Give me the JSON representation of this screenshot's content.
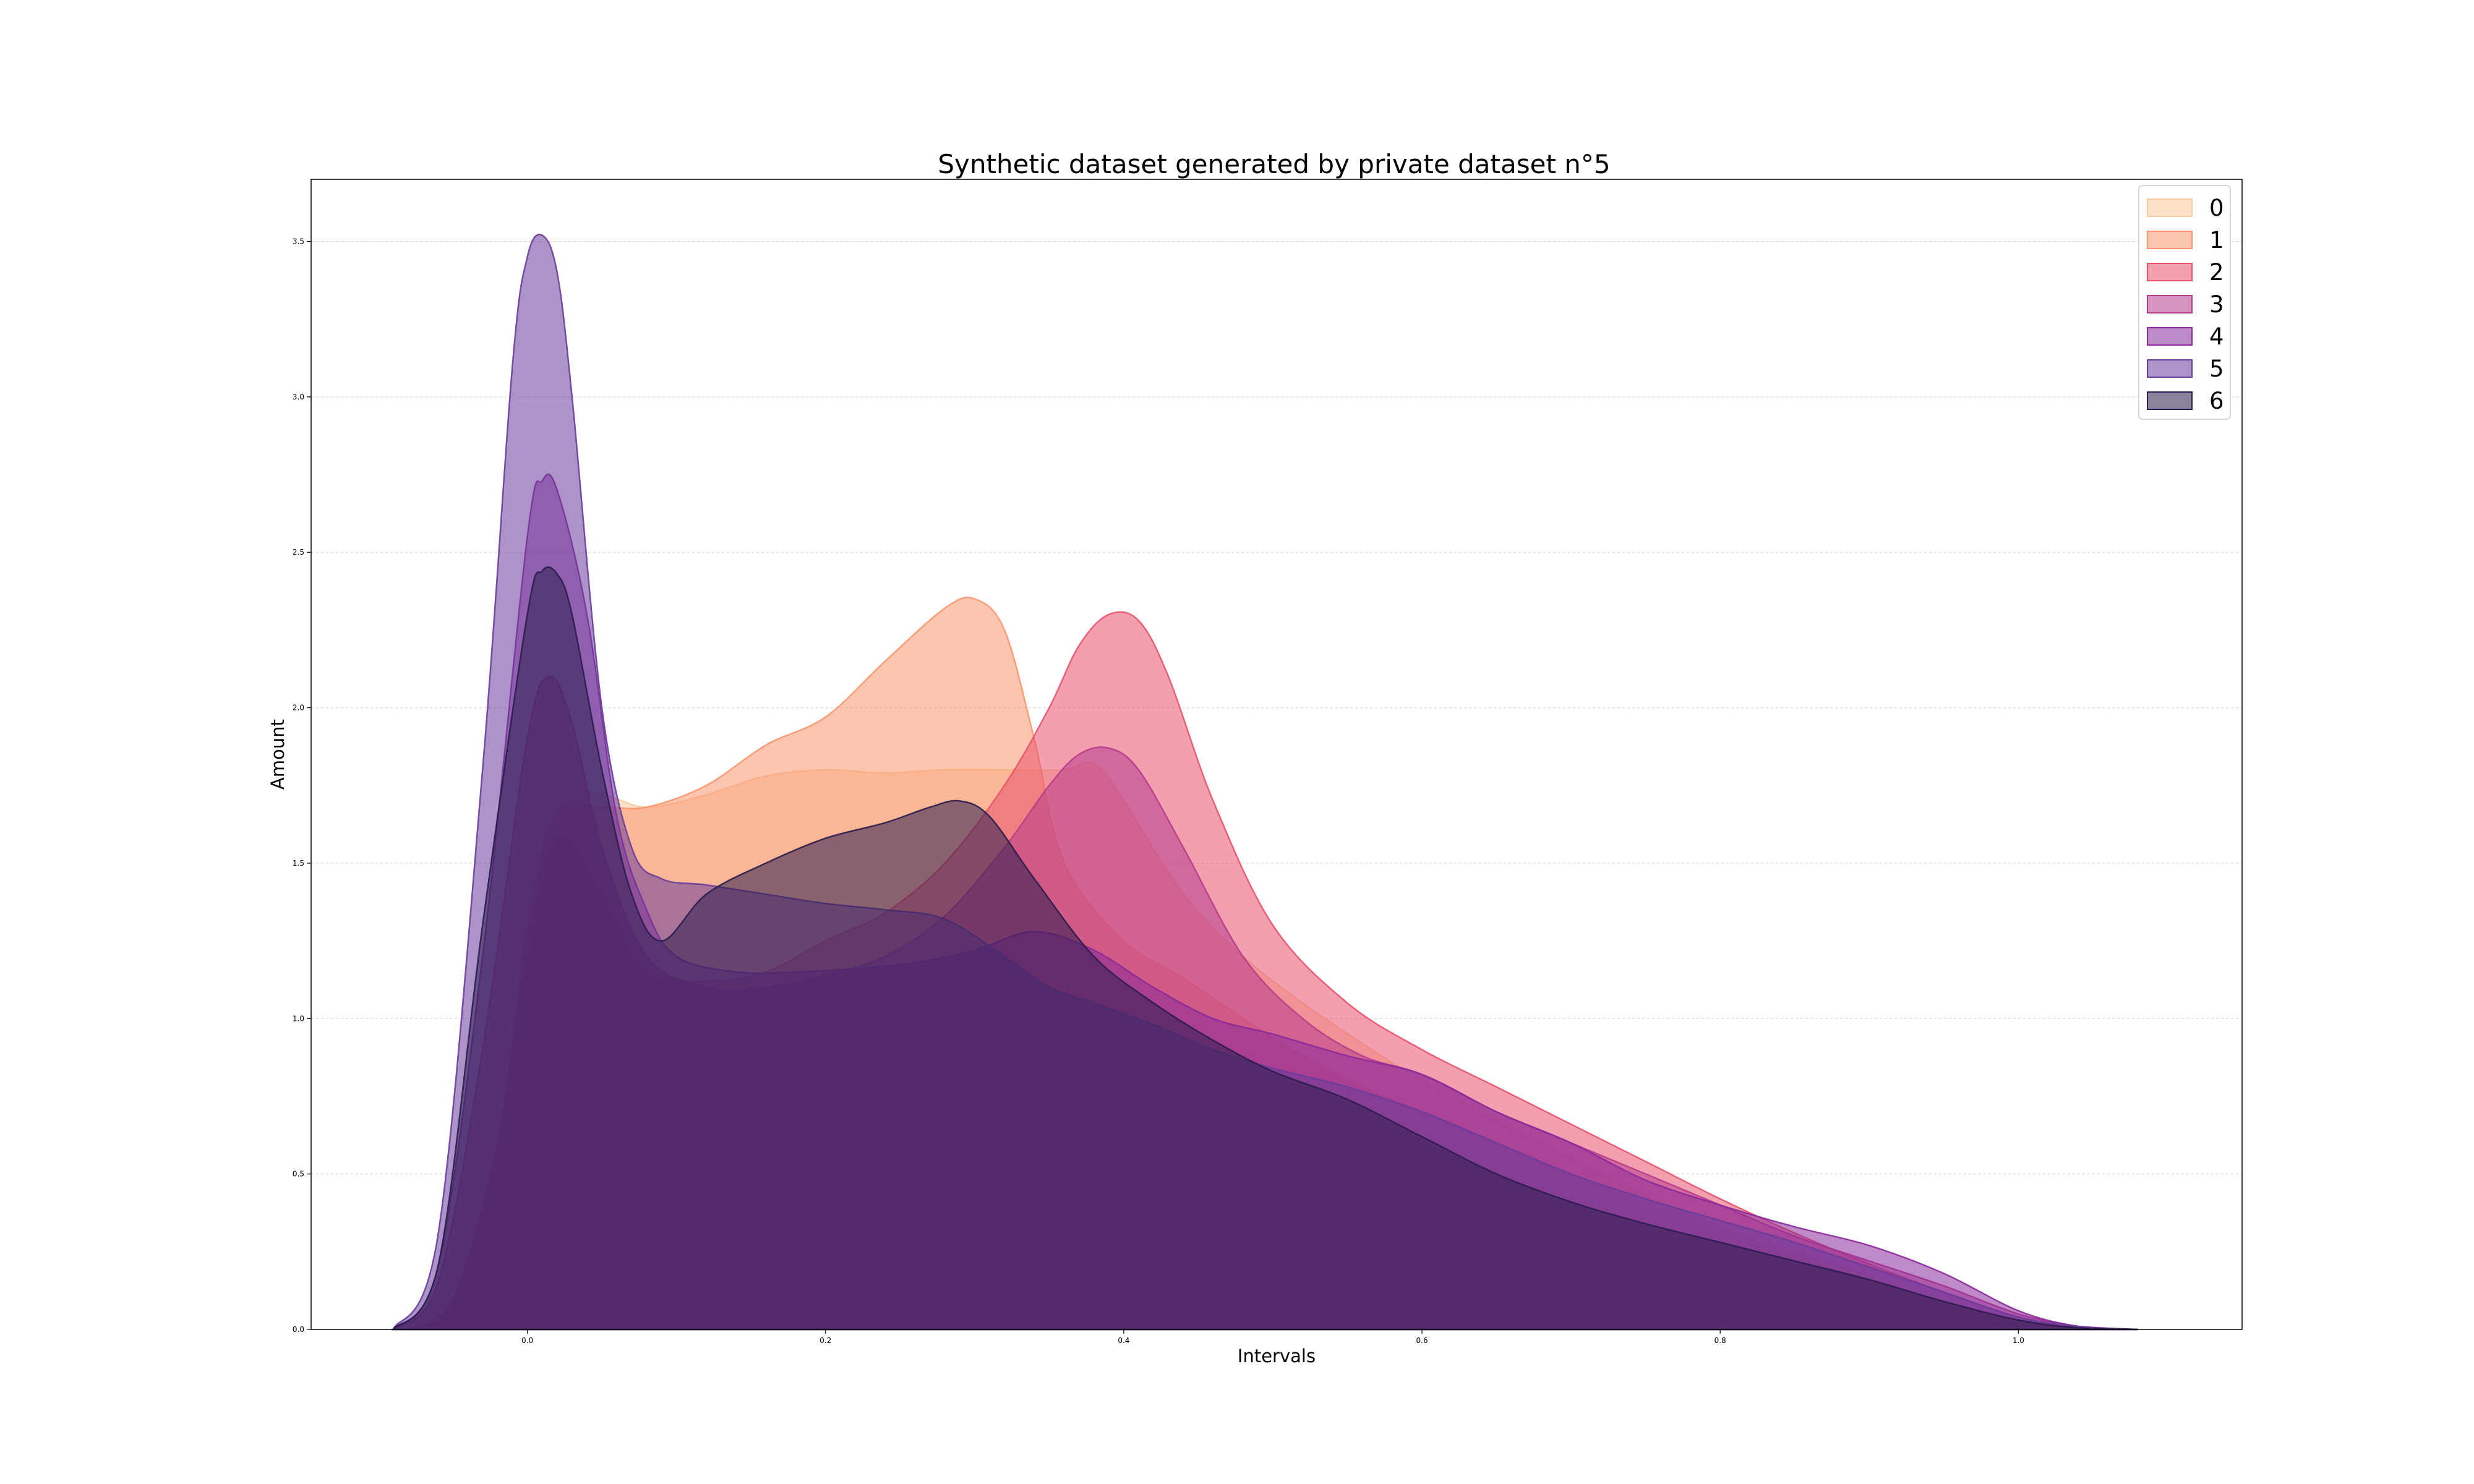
{
  "chart_data": {
    "type": "area",
    "title": "Synthetic dataset generated by private dataset n°5",
    "xlabel": "Intervals",
    "ylabel": "Amount",
    "xlim": [
      -0.145,
      1.15
    ],
    "ylim": [
      0,
      3.7
    ],
    "xticks": [
      0.0,
      0.2,
      0.4,
      0.6,
      0.8,
      1.0
    ],
    "xtick_labels": [
      "0.0",
      "0.2",
      "0.4",
      "0.6",
      "0.8",
      "1.0"
    ],
    "yticks": [
      0.0,
      0.5,
      1.0,
      1.5,
      2.0,
      2.5,
      3.0,
      3.5
    ],
    "ytick_labels": [
      "0.0",
      "0.5",
      "1.0",
      "1.5",
      "2.0",
      "2.5",
      "3.0",
      "3.5"
    ],
    "grid": "horizontal",
    "legend_position": "top-right",
    "series": [
      {
        "name": "0",
        "color": "#fcc99a",
        "x": [
          -0.08,
          -0.05,
          -0.02,
          0.0,
          0.02,
          0.05,
          0.08,
          0.12,
          0.16,
          0.2,
          0.24,
          0.28,
          0.32,
          0.36,
          0.38,
          0.4,
          0.44,
          0.48,
          0.52,
          0.56,
          0.6,
          0.65,
          0.7,
          0.75,
          0.8,
          0.85,
          0.9,
          0.95,
          1.0,
          1.04,
          1.08
        ],
        "y": [
          0.0,
          0.1,
          0.6,
          1.3,
          1.7,
          1.72,
          1.68,
          1.72,
          1.78,
          1.8,
          1.79,
          1.8,
          1.8,
          1.8,
          1.82,
          1.7,
          1.4,
          1.2,
          1.05,
          0.92,
          0.8,
          0.67,
          0.55,
          0.43,
          0.33,
          0.25,
          0.17,
          0.09,
          0.03,
          0.005,
          0.0
        ]
      },
      {
        "name": "1",
        "color": "#f9966e",
        "x": [
          -0.08,
          -0.05,
          -0.02,
          0.0,
          0.02,
          0.05,
          0.08,
          0.12,
          0.16,
          0.2,
          0.24,
          0.28,
          0.3,
          0.32,
          0.34,
          0.36,
          0.4,
          0.44,
          0.48,
          0.52,
          0.56,
          0.6,
          0.65,
          0.7,
          0.75,
          0.8,
          0.85,
          0.9,
          0.95,
          1.0,
          1.04,
          1.08
        ],
        "y": [
          0.0,
          0.1,
          0.6,
          1.3,
          1.66,
          1.68,
          1.68,
          1.75,
          1.88,
          1.97,
          2.15,
          2.32,
          2.35,
          2.25,
          1.9,
          1.5,
          1.25,
          1.13,
          1.0,
          0.88,
          0.78,
          0.7,
          0.6,
          0.5,
          0.4,
          0.31,
          0.23,
          0.16,
          0.09,
          0.03,
          0.005,
          0.0
        ]
      },
      {
        "name": "2",
        "color": "#e8526e",
        "x": [
          -0.08,
          -0.05,
          -0.02,
          0.0,
          0.02,
          0.05,
          0.08,
          0.12,
          0.16,
          0.2,
          0.24,
          0.28,
          0.32,
          0.35,
          0.37,
          0.39,
          0.41,
          0.43,
          0.46,
          0.5,
          0.55,
          0.6,
          0.65,
          0.7,
          0.75,
          0.8,
          0.85,
          0.9,
          0.95,
          1.0,
          1.04,
          1.08
        ],
        "y": [
          0.0,
          0.1,
          0.6,
          1.2,
          1.58,
          1.4,
          1.15,
          1.12,
          1.15,
          1.25,
          1.34,
          1.5,
          1.75,
          2.0,
          2.2,
          2.3,
          2.28,
          2.1,
          1.7,
          1.3,
          1.05,
          0.9,
          0.78,
          0.66,
          0.54,
          0.42,
          0.31,
          0.21,
          0.12,
          0.04,
          0.01,
          0.0
        ]
      },
      {
        "name": "3",
        "color": "#b83c8d",
        "x": [
          -0.09,
          -0.06,
          -0.03,
          0.0,
          0.015,
          0.03,
          0.05,
          0.08,
          0.12,
          0.16,
          0.2,
          0.24,
          0.28,
          0.32,
          0.35,
          0.37,
          0.39,
          0.41,
          0.44,
          0.48,
          0.52,
          0.56,
          0.6,
          0.65,
          0.7,
          0.75,
          0.8,
          0.85,
          0.9,
          0.95,
          1.0,
          1.04,
          1.08
        ],
        "y": [
          0.0,
          0.15,
          0.9,
          1.9,
          2.1,
          1.95,
          1.55,
          1.2,
          1.1,
          1.1,
          1.14,
          1.2,
          1.33,
          1.55,
          1.75,
          1.85,
          1.87,
          1.8,
          1.55,
          1.2,
          1.0,
          0.88,
          0.82,
          0.7,
          0.6,
          0.5,
          0.4,
          0.3,
          0.22,
          0.14,
          0.05,
          0.01,
          0.0
        ]
      },
      {
        "name": "4",
        "color": "#8a2a9b",
        "x": [
          -0.09,
          -0.06,
          -0.03,
          0.0,
          0.01,
          0.02,
          0.04,
          0.06,
          0.08,
          0.1,
          0.14,
          0.18,
          0.22,
          0.26,
          0.3,
          0.34,
          0.38,
          0.42,
          0.46,
          0.5,
          0.55,
          0.6,
          0.65,
          0.7,
          0.75,
          0.8,
          0.85,
          0.9,
          0.95,
          1.0,
          1.04,
          1.08
        ],
        "y": [
          0.0,
          0.2,
          1.2,
          2.55,
          2.73,
          2.7,
          2.3,
          1.65,
          1.35,
          1.2,
          1.15,
          1.15,
          1.16,
          1.18,
          1.22,
          1.28,
          1.22,
          1.1,
          1.0,
          0.95,
          0.88,
          0.82,
          0.7,
          0.6,
          0.48,
          0.4,
          0.33,
          0.27,
          0.18,
          0.06,
          0.01,
          0.0
        ]
      },
      {
        "name": "5",
        "color": "#6a3d9a",
        "x": [
          -0.09,
          -0.06,
          -0.03,
          -0.01,
          0.0,
          0.01,
          0.02,
          0.03,
          0.05,
          0.07,
          0.09,
          0.12,
          0.16,
          0.2,
          0.24,
          0.28,
          0.32,
          0.35,
          0.38,
          0.42,
          0.46,
          0.5,
          0.55,
          0.6,
          0.65,
          0.7,
          0.75,
          0.8,
          0.85,
          0.9,
          0.95,
          1.0,
          1.04,
          1.08
        ],
        "y": [
          0.0,
          0.3,
          1.8,
          3.1,
          3.45,
          3.52,
          3.4,
          3.0,
          2.0,
          1.55,
          1.45,
          1.43,
          1.4,
          1.37,
          1.35,
          1.32,
          1.2,
          1.1,
          1.05,
          0.98,
          0.9,
          0.84,
          0.78,
          0.7,
          0.6,
          0.5,
          0.42,
          0.35,
          0.28,
          0.2,
          0.12,
          0.04,
          0.01,
          0.0
        ]
      },
      {
        "name": "6",
        "color": "#2b1d4e",
        "x": [
          -0.09,
          -0.06,
          -0.03,
          0.0,
          0.01,
          0.02,
          0.03,
          0.05,
          0.07,
          0.09,
          0.12,
          0.16,
          0.2,
          0.24,
          0.27,
          0.29,
          0.31,
          0.34,
          0.38,
          0.42,
          0.46,
          0.5,
          0.55,
          0.6,
          0.65,
          0.7,
          0.75,
          0.8,
          0.85,
          0.9,
          0.95,
          1.0,
          1.04,
          1.08
        ],
        "y": [
          0.0,
          0.2,
          1.3,
          2.3,
          2.44,
          2.43,
          2.3,
          1.8,
          1.4,
          1.25,
          1.4,
          1.5,
          1.58,
          1.63,
          1.68,
          1.7,
          1.65,
          1.45,
          1.2,
          1.05,
          0.93,
          0.83,
          0.74,
          0.62,
          0.5,
          0.41,
          0.34,
          0.28,
          0.22,
          0.16,
          0.09,
          0.03,
          0.005,
          0.0
        ]
      }
    ]
  }
}
